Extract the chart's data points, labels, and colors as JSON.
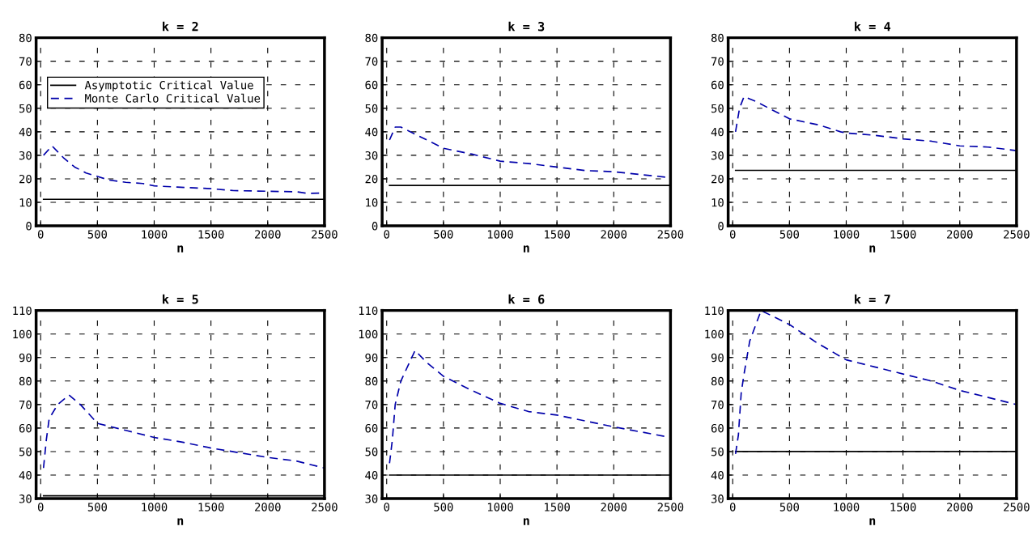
{
  "chart_data": [
    {
      "type": "line",
      "title": "k = 2",
      "xlabel": "n",
      "xlim": [
        -40,
        2500
      ],
      "xticks": [
        0,
        500,
        1000,
        1500,
        2000,
        2500
      ],
      "ylim": [
        0,
        80
      ],
      "yticks": [
        0,
        10,
        20,
        30,
        40,
        50,
        60,
        70,
        80
      ],
      "grid": true,
      "legend": "top left",
      "series": [
        {
          "name": "Asymptotic Critical Value",
          "color": "#000000",
          "line_style": "solid",
          "x": [
            25,
            2500
          ],
          "values": [
            11.3,
            11.3
          ]
        },
        {
          "name": "Monte Carlo Critical Value",
          "color": "#0000aa",
          "line_style": "dashed",
          "x": [
            25,
            100,
            200,
            300,
            400,
            500,
            600,
            750,
            900,
            1000,
            1200,
            1500,
            1700,
            2000,
            2250,
            2350,
            2500
          ],
          "values": [
            30,
            34,
            29,
            25,
            22.5,
            21,
            19.5,
            18.5,
            18,
            17,
            16.5,
            15.8,
            15,
            14.7,
            14.5,
            13.8,
            14
          ]
        }
      ]
    },
    {
      "type": "line",
      "title": "k = 3",
      "xlabel": "n",
      "xlim": [
        -40,
        2500
      ],
      "xticks": [
        0,
        500,
        1000,
        1500,
        2000,
        2500
      ],
      "ylim": [
        0,
        80
      ],
      "yticks": [
        0,
        10,
        20,
        30,
        40,
        50,
        60,
        70,
        80
      ],
      "grid": true,
      "series": [
        {
          "color": "#000000",
          "line_style": "solid",
          "x": [
            25,
            2500
          ],
          "values": [
            17.2,
            17.2
          ]
        },
        {
          "color": "#0000aa",
          "line_style": "dashed",
          "x": [
            25,
            75,
            125,
            500,
            750,
            1000,
            1250,
            1500,
            1750,
            2000,
            2500
          ],
          "values": [
            36.5,
            42,
            42,
            33,
            30.5,
            27.5,
            26.5,
            25,
            23.5,
            23,
            20.5
          ]
        }
      ]
    },
    {
      "type": "line",
      "title": "k = 4",
      "xlabel": "n",
      "xlim": [
        -40,
        2500
      ],
      "xticks": [
        0,
        500,
        1000,
        1500,
        2000,
        2500
      ],
      "ylim": [
        0,
        80
      ],
      "yticks": [
        0,
        10,
        20,
        30,
        40,
        50,
        60,
        70,
        80
      ],
      "grid": true,
      "series": [
        {
          "color": "#000000",
          "line_style": "solid",
          "x": [
            25,
            2500
          ],
          "values": [
            23.6,
            23.6
          ]
        },
        {
          "color": "#0000aa",
          "line_style": "dashed",
          "x": [
            25,
            60,
            100,
            200,
            500,
            750,
            950,
            1000,
            1250,
            1500,
            1750,
            2000,
            2250,
            2500
          ],
          "values": [
            40,
            50,
            55,
            53,
            45.5,
            43,
            40,
            39.5,
            38.5,
            37,
            36,
            34,
            33.5,
            32
          ]
        }
      ]
    },
    {
      "type": "line",
      "title": "k = 5",
      "xlabel": "n",
      "xlim": [
        -40,
        2500
      ],
      "xticks": [
        0,
        500,
        1000,
        1500,
        2000,
        2500
      ],
      "ylim": [
        30,
        110
      ],
      "yticks": [
        30,
        40,
        50,
        60,
        70,
        80,
        90,
        100,
        110
      ],
      "grid": true,
      "series": [
        {
          "color": "#000000",
          "line_style": "solid",
          "x": [
            25,
            2500
          ],
          "values": [
            31.2,
            31.2
          ]
        },
        {
          "color": "#0000aa",
          "line_style": "dashed",
          "x": [
            25,
            50,
            75,
            150,
            250,
            350,
            500,
            750,
            1000,
            1250,
            1500,
            1750,
            2000,
            2250,
            2500
          ],
          "values": [
            43,
            55,
            64,
            70,
            74,
            70,
            62,
            59,
            56,
            54,
            51.5,
            49.5,
            47.5,
            46,
            43
          ]
        }
      ]
    },
    {
      "type": "line",
      "title": "k = 6",
      "xlabel": "n",
      "xlim": [
        -40,
        2500
      ],
      "xticks": [
        0,
        500,
        1000,
        1500,
        2000,
        2500
      ],
      "ylim": [
        30,
        110
      ],
      "yticks": [
        30,
        40,
        50,
        60,
        70,
        80,
        90,
        100,
        110
      ],
      "grid": true,
      "series": [
        {
          "color": "#000000",
          "line_style": "solid",
          "x": [
            25,
            2500
          ],
          "values": [
            40,
            40
          ]
        },
        {
          "color": "#0000aa",
          "line_style": "dashed",
          "x": [
            25,
            50,
            75,
            125,
            250,
            350,
            500,
            750,
            1000,
            1250,
            1500,
            1750,
            2000,
            2500
          ],
          "values": [
            45,
            55,
            70,
            80,
            93,
            88,
            82,
            76,
            70.5,
            67,
            65.5,
            63,
            60.5,
            56
          ]
        }
      ]
    },
    {
      "type": "line",
      "title": "k = 7",
      "xlabel": "n",
      "xlim": [
        -40,
        2500
      ],
      "xticks": [
        0,
        500,
        1000,
        1500,
        2000,
        2500
      ],
      "ylim": [
        30,
        110
      ],
      "yticks": [
        30,
        40,
        50,
        60,
        70,
        80,
        90,
        100,
        110
      ],
      "grid": true,
      "series": [
        {
          "color": "#000000",
          "line_style": "solid",
          "x": [
            25,
            2500
          ],
          "values": [
            50,
            50
          ]
        },
        {
          "color": "#0000aa",
          "line_style": "dashed",
          "x": [
            25,
            50,
            75,
            100,
            150,
            250,
            500,
            750,
            1000,
            1250,
            1500,
            1750,
            2000,
            2500
          ],
          "values": [
            49,
            57,
            75,
            83,
            97,
            110,
            104,
            96,
            89,
            86,
            83,
            80,
            76,
            70
          ]
        }
      ]
    }
  ]
}
